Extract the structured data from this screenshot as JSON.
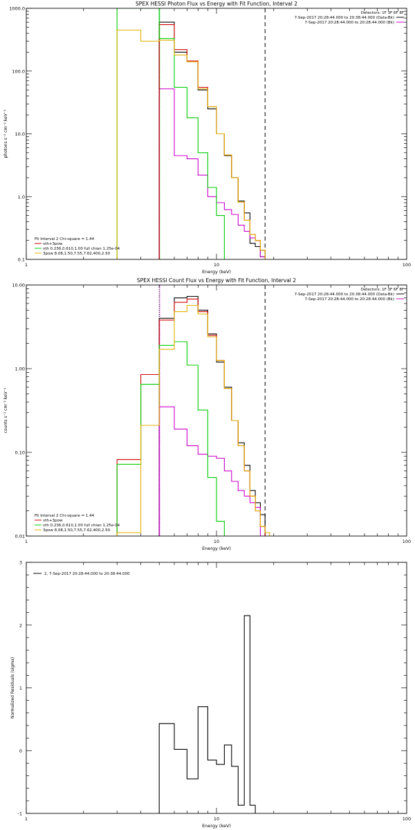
{
  "chart_data": [
    {
      "type": "line",
      "title": "SPEX HESSI Photon Flux vs Energy with Fit Function, Interval 2",
      "xlabel": "Energy (keV)",
      "ylabel": "photons s⁻¹ cm⁻² keV⁻¹",
      "xscale": "log",
      "yscale": "log",
      "xlim": [
        1,
        100
      ],
      "ylim": [
        0.1,
        1000
      ],
      "x_tick_labels": [
        "1",
        "10",
        "100"
      ],
      "y_tick_labels": [
        "0.1",
        "1.0",
        "10.0",
        "100.0",
        "1000.0"
      ],
      "legend_top_right": [
        {
          "text": "Detectors: 1F 3F 6F 8F",
          "color": ""
        },
        {
          "text": "7-Sep-2017 20:28:44.000 to 20:38:44.000 (Data-Bk)",
          "color": "#000000"
        },
        {
          "text": "7-Sep-2017 20:28:44.000 to 20:28:44.000 (Bk)",
          "color": "#cc00cc"
        }
      ],
      "legend_bottom_left": [
        {
          "text": "Fit Interval 2   Chi-square = 1.44",
          "color": ""
        },
        {
          "text": "vth+3pow",
          "color": "#d00000"
        },
        {
          "text": "vth 0.236,0.610,1.00  full chian 1.25e-04",
          "color": "#00cc00"
        },
        {
          "text": "3pow 8.08,1.50,7.55,7.62,400,2.50",
          "color": "#e0b000"
        }
      ],
      "vlines": [
        {
          "x": 5.0,
          "style": "dotted",
          "color": "#0033ff"
        },
        {
          "x": 5.0,
          "style": "dotted",
          "color": "#00cc00"
        },
        {
          "x": 18.0,
          "style": "dashed",
          "color": "#000000"
        }
      ],
      "bin_edges": [
        3,
        4,
        5,
        6,
        7,
        8,
        9,
        10,
        11,
        12,
        13,
        14,
        15,
        16,
        17,
        18,
        19,
        20
      ],
      "series": [
        {
          "name": "Data-Bk",
          "color": "#000000",
          "values": [
            null,
            null,
            600,
            200,
            140,
            50,
            25,
            10,
            4.5,
            2.0,
            0.85,
            0.55,
            0.18,
            0.16,
            0.11,
            null,
            null
          ]
        },
        {
          "name": "Bk",
          "color": "#cc00cc",
          "values": [
            null,
            null,
            52,
            4.5,
            4.0,
            2.2,
            1.0,
            0.8,
            0.62,
            0.52,
            0.35,
            0.28,
            0.22,
            0.2,
            0.11,
            null,
            null
          ]
        },
        {
          "name": "vth+3pow",
          "color": "#d00000",
          "values": [
            null,
            null,
            550,
            220,
            145,
            55,
            27,
            10,
            4.6,
            2.0,
            0.82,
            0.42,
            0.25,
            0.2,
            0.14,
            null,
            null
          ]
        },
        {
          "name": "vth",
          "color": "#00cc00",
          "values": [
            1000,
            1000,
            330,
            55,
            18,
            5.0,
            1.4,
            0.5,
            0.1,
            null,
            null,
            null,
            null,
            null,
            null,
            null,
            null
          ]
        },
        {
          "name": "3pow",
          "color": "#e0b000",
          "values": [
            450,
            300,
            310,
            180,
            140,
            52,
            27,
            10,
            4.6,
            2.0,
            0.82,
            0.42,
            0.25,
            0.2,
            0.14,
            null,
            null
          ]
        }
      ]
    },
    {
      "type": "line",
      "title": "SPEX HESSI Count Flux vs Energy with Fit Function, Interval 2",
      "xlabel": "Energy (keV)",
      "ylabel": "counts s⁻¹ cm⁻² keV⁻¹",
      "xscale": "log",
      "yscale": "log",
      "xlim": [
        1,
        100
      ],
      "ylim": [
        0.01,
        10
      ],
      "x_tick_labels": [
        "1",
        "10",
        "100"
      ],
      "y_tick_labels": [
        "0.01",
        "0.10",
        "1.00",
        "10.00"
      ],
      "legend_top_right": [
        {
          "text": "Detectors: 1F 3F 6F 8F",
          "color": ""
        },
        {
          "text": "7-Sep-2017 20:28:44.000 to 20:38:44.000 (Data-Bk)",
          "color": "#000000"
        },
        {
          "text": "7-Sep-2017 20:28:44.000 to 20:28:44.000 (Bk)",
          "color": "#cc00cc"
        }
      ],
      "legend_bottom_left": [
        {
          "text": "Fit Interval 2   Chi-square = 1.44",
          "color": ""
        },
        {
          "text": "vth+3pow",
          "color": "#d00000"
        },
        {
          "text": "vth 0.236,0.610,1.00  full chian 1.25e-04",
          "color": "#00cc00"
        },
        {
          "text": "3pow 8.08,1.50,7.55,7.62,400,2.50",
          "color": "#e0b000"
        }
      ],
      "vlines": [
        {
          "x": 5.0,
          "style": "dotted",
          "color": "#000000"
        },
        {
          "x": 5.0,
          "style": "dotted",
          "color": "#cc00cc"
        },
        {
          "x": 18.0,
          "style": "dashed",
          "color": "#000000"
        }
      ],
      "bin_edges": [
        3,
        4,
        5,
        6,
        7,
        8,
        9,
        10,
        11,
        12,
        13,
        14,
        15,
        16,
        17,
        18,
        19,
        20
      ],
      "series": [
        {
          "name": "Data-Bk",
          "color": "#000000",
          "values": [
            null,
            null,
            4.0,
            7.0,
            7.3,
            5.0,
            2.6,
            1.2,
            0.6,
            0.24,
            0.13,
            0.07,
            0.035,
            0.025,
            0.018,
            null,
            null
          ]
        },
        {
          "name": "Bk",
          "color": "#cc00cc",
          "values": [
            null,
            null,
            0.35,
            0.19,
            0.12,
            0.095,
            0.09,
            0.085,
            0.06,
            0.045,
            0.035,
            0.03,
            0.025,
            0.022,
            0.01,
            null,
            null
          ]
        },
        {
          "name": "vth+3pow",
          "color": "#d00000",
          "values": [
            0.082,
            0.85,
            3.8,
            6.2,
            6.8,
            4.8,
            2.5,
            1.25,
            0.58,
            0.24,
            0.12,
            0.06,
            0.03,
            0.02,
            0.013,
            null,
            null
          ]
        },
        {
          "name": "vth",
          "color": "#00cc00",
          "values": [
            0.072,
            0.65,
            1.9,
            2.1,
            1.1,
            0.32,
            0.05,
            0.015,
            null,
            null,
            null,
            null,
            null,
            null,
            null,
            null,
            null
          ]
        },
        {
          "name": "3pow",
          "color": "#e0b000",
          "values": [
            0.011,
            0.21,
            1.7,
            4.8,
            5.7,
            4.5,
            2.4,
            1.25,
            0.58,
            0.24,
            0.12,
            0.06,
            0.03,
            0.02,
            0.013,
            0.011,
            null
          ]
        }
      ]
    },
    {
      "type": "line",
      "title": "",
      "xlabel": "Energy (keV)",
      "ylabel": "Normalized Residuals (sigma)",
      "xscale": "log",
      "yscale": "linear",
      "xlim": [
        1,
        100
      ],
      "ylim": [
        -1,
        3
      ],
      "x_tick_labels": [
        "1",
        "10",
        "100"
      ],
      "y_tick_labels": [
        "-1",
        "0",
        "1",
        "2",
        "3"
      ],
      "legend_top_right": [],
      "legend_bottom_left": [],
      "legend_top_left": [
        {
          "text": "2, 7-Sep-2017 20:28:44.000 to 20:38:44.000",
          "color": "#000000"
        }
      ],
      "vlines": [],
      "bin_edges": [
        5,
        6,
        7,
        8,
        9,
        10,
        11,
        12,
        13,
        14,
        15,
        16,
        17,
        18
      ],
      "series": [
        {
          "name": "Residuals",
          "color": "#000000",
          "values": [
            0.43,
            0.02,
            -0.45,
            0.7,
            -0.15,
            -0.22,
            0.09,
            -0.25,
            -0.87,
            2.15,
            -0.87,
            null,
            null
          ]
        }
      ]
    }
  ]
}
